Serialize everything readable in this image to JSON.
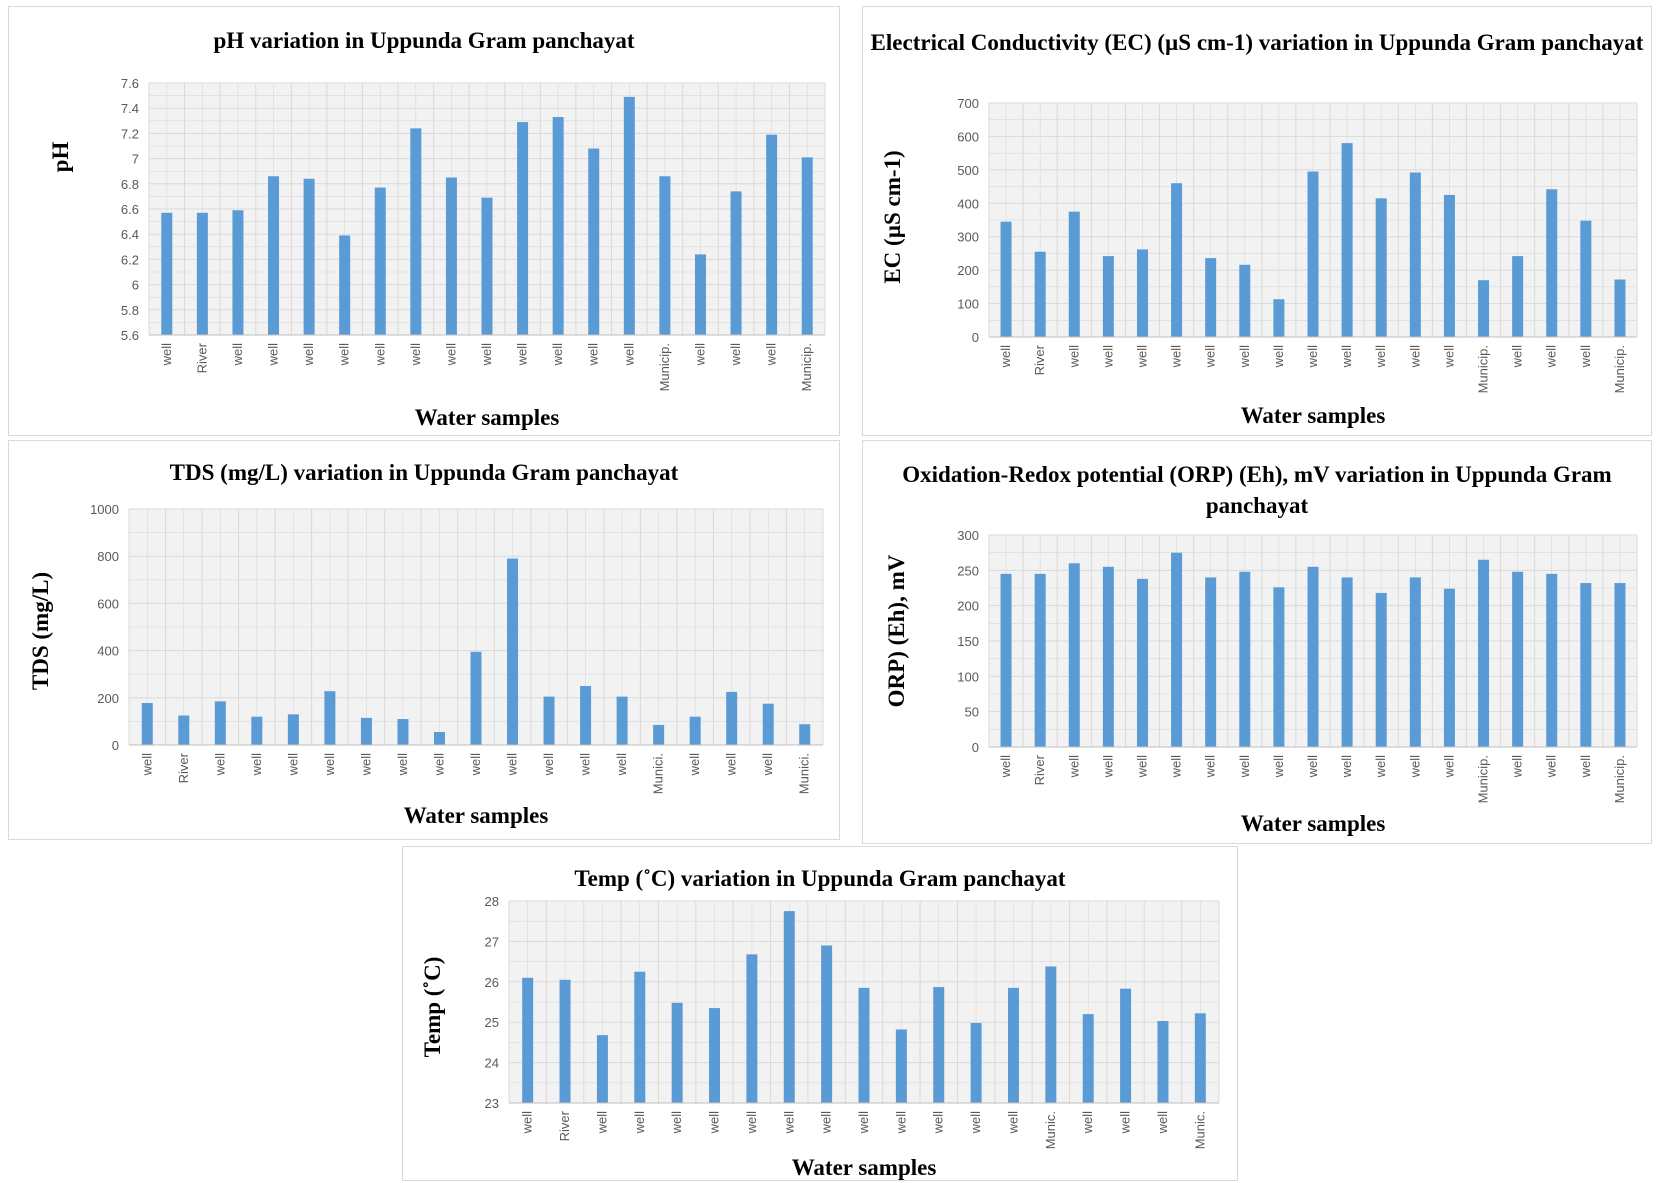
{
  "style": {
    "bar_color": "#5b9bd5",
    "grid_color": "#d9d9d9",
    "plot_bg": "#f2f2f2"
  },
  "chart_data": [
    {
      "type": "bar",
      "title": "pH variation in Uppunda Gram panchayat",
      "xlabel": "Water samples",
      "ylabel": "pH",
      "ylim": [
        5.6,
        7.6
      ],
      "yticks": [
        5.6,
        5.8,
        6,
        6.2,
        6.4,
        6.6,
        6.8,
        7,
        7.2,
        7.4,
        7.6
      ],
      "grid": true,
      "categories": [
        "well",
        "River",
        "well",
        "well",
        "well",
        "well",
        "well",
        "well",
        "well",
        "well",
        "well",
        "well",
        "well",
        "well",
        "Municip.",
        "well",
        "well",
        "well",
        "Municip."
      ],
      "values": [
        6.57,
        6.57,
        6.59,
        6.86,
        6.84,
        6.39,
        6.77,
        7.24,
        6.85,
        6.69,
        7.29,
        7.33,
        7.08,
        7.49,
        6.86,
        6.24,
        6.74,
        7.19,
        7.01
      ]
    },
    {
      "type": "bar",
      "title": "Electrical Conductivity (EC) (µS cm-1) variation in Uppunda Gram panchayat",
      "xlabel": "Water samples",
      "ylabel": "EC (µS cm-1)",
      "ylim": [
        0,
        700
      ],
      "yticks": [
        0,
        100,
        200,
        300,
        400,
        500,
        600,
        700
      ],
      "grid": true,
      "categories": [
        "well",
        "River",
        "well",
        "well",
        "well",
        "well",
        "well",
        "well",
        "well",
        "well",
        "well",
        "well",
        "well",
        "well",
        "Municip.",
        "well",
        "well",
        "well",
        "Municip."
      ],
      "values": [
        345,
        255,
        375,
        242,
        262,
        460,
        236,
        216,
        113,
        495,
        580,
        415,
        492,
        425,
        170,
        242,
        442,
        348,
        172
      ]
    },
    {
      "type": "bar",
      "title": "TDS (mg/L) variation in Uppunda Gram panchayat",
      "xlabel": "Water samples",
      "ylabel": "TDS (mg/L)",
      "ylim": [
        0,
        1000
      ],
      "yticks": [
        0,
        200,
        400,
        600,
        800,
        1000
      ],
      "grid": true,
      "categories": [
        "well",
        "River",
        "well",
        "well",
        "well",
        "well",
        "well",
        "well",
        "well",
        "well",
        "well",
        "well",
        "well",
        "well",
        "Munici.",
        "well",
        "well",
        "well",
        "Munici."
      ],
      "values": [
        178,
        125,
        185,
        120,
        130,
        228,
        115,
        110,
        55,
        395,
        790,
        205,
        250,
        205,
        85,
        120,
        225,
        175,
        88
      ]
    },
    {
      "type": "bar",
      "title": "Oxidation-Redox potential (ORP) (Eh), mV variation in Uppunda Gram panchayat",
      "xlabel": "Water samples",
      "ylabel": "ORP) (Eh), mV",
      "ylim": [
        0,
        300
      ],
      "yticks": [
        0,
        50,
        100,
        150,
        200,
        250,
        300
      ],
      "grid": true,
      "categories": [
        "well",
        "River",
        "well",
        "well",
        "well",
        "well",
        "well",
        "well",
        "well",
        "well",
        "well",
        "well",
        "well",
        "well",
        "Municip.",
        "well",
        "well",
        "well",
        "Municip."
      ],
      "values": [
        245,
        245,
        260,
        255,
        238,
        275,
        240,
        248,
        226,
        255,
        240,
        218,
        240,
        224,
        265,
        248,
        245,
        232,
        232
      ]
    },
    {
      "type": "bar",
      "title": "Temp (˚C) variation in Uppunda Gram panchayat",
      "xlabel": "Water samples",
      "ylabel": "Temp (˚C)",
      "ylim": [
        23,
        28
      ],
      "yticks": [
        23,
        24,
        25,
        26,
        27,
        28
      ],
      "grid": true,
      "categories": [
        "well",
        "River",
        "well",
        "well",
        "well",
        "well",
        "well",
        "well",
        "well",
        "well",
        "well",
        "well",
        "well",
        "well",
        "Munic.",
        "well",
        "well",
        "well",
        "Munic."
      ],
      "values": [
        26.1,
        26.05,
        24.68,
        26.25,
        25.48,
        25.35,
        26.68,
        27.75,
        26.9,
        25.85,
        24.82,
        25.87,
        24.98,
        25.85,
        26.38,
        25.2,
        25.83,
        25.03,
        25.22
      ]
    }
  ]
}
